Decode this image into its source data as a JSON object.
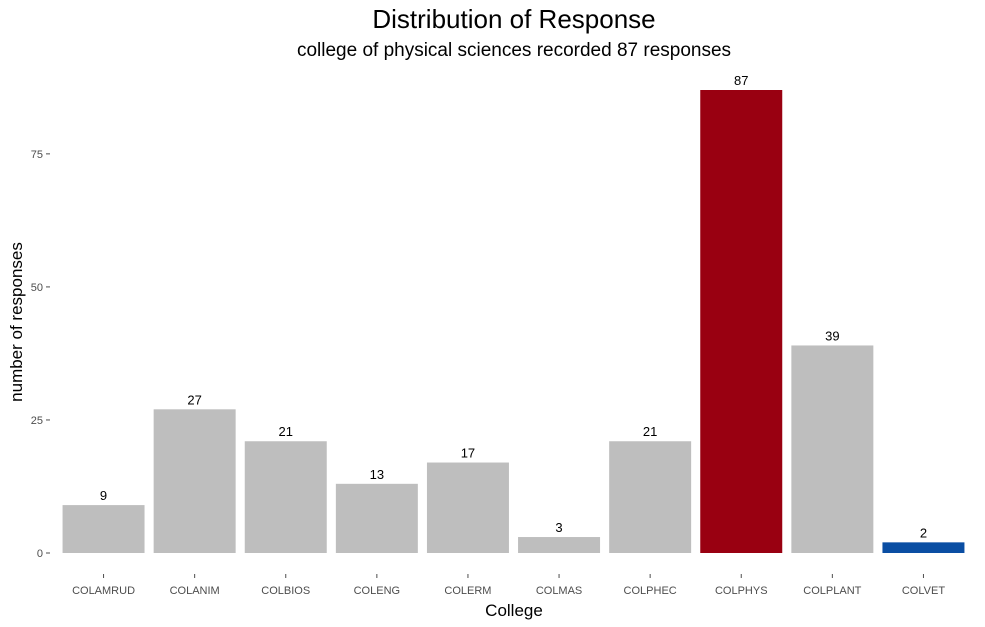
{
  "chart_data": {
    "type": "bar",
    "title": "Distribution of Response",
    "subtitle": "college of physical sciences recorded 87 responses",
    "xlabel": "College",
    "ylabel": "number of responses",
    "categories": [
      "COLAMRUD",
      "COLANIM",
      "COLBIOS",
      "COLENG",
      "COLERM",
      "COLMAS",
      "COLPHEC",
      "COLPHYS",
      "COLPLANT",
      "COLVET"
    ],
    "values": [
      9,
      27,
      21,
      13,
      17,
      3,
      21,
      87,
      39,
      2
    ],
    "bar_colors": [
      "#bebebe",
      "#bebebe",
      "#bebebe",
      "#bebebe",
      "#bebebe",
      "#bebebe",
      "#bebebe",
      "#990011",
      "#bebebe",
      "#0a4ea3"
    ],
    "yticks": [
      0,
      25,
      50,
      75
    ],
    "ylim": [
      0,
      87
    ],
    "grid": false,
    "legend": "none"
  }
}
